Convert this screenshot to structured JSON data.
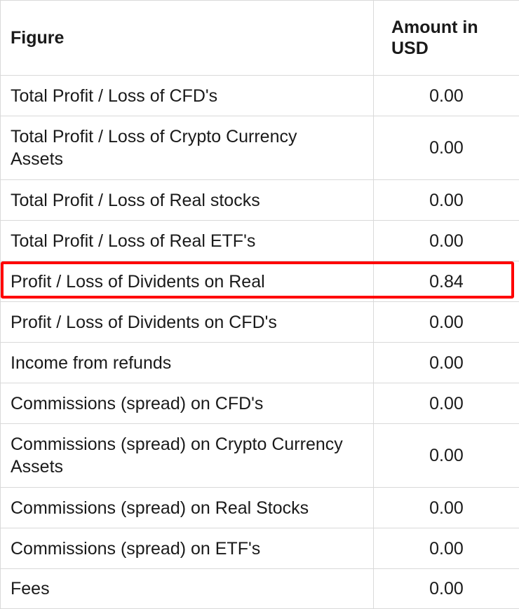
{
  "table": {
    "headers": [
      "Figure",
      "Amount in USD"
    ],
    "rows": [
      {
        "figure": "Total Profit / Loss of CFD's",
        "amount": "0.00"
      },
      {
        "figure": "Total Profit / Loss of Crypto Currency Assets",
        "amount": "0.00"
      },
      {
        "figure": "Total Profit / Loss of Real stocks",
        "amount": "0.00"
      },
      {
        "figure": "Total Profit / Loss of Real ETF's",
        "amount": "0.00"
      },
      {
        "figure": "Profit / Loss of Dividents on Real",
        "amount": "0.84"
      },
      {
        "figure": "Profit / Loss of Dividents on CFD's",
        "amount": "0.00"
      },
      {
        "figure": "Income from refunds",
        "amount": "0.00"
      },
      {
        "figure": "Commissions (spread) on CFD's",
        "amount": "0.00"
      },
      {
        "figure": "Commissions (spread) on Crypto Currency Assets",
        "amount": "0.00"
      },
      {
        "figure": "Commissions (spread) on Real Stocks",
        "amount": "0.00"
      },
      {
        "figure": "Commissions (spread) on ETF's",
        "amount": "0.00"
      },
      {
        "figure": "Fees",
        "amount": "0.00"
      }
    ]
  },
  "highlight": {
    "color": "#ff0000",
    "row_index": 4
  }
}
